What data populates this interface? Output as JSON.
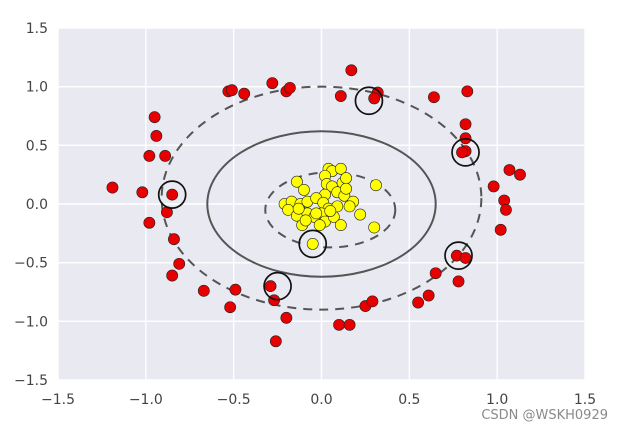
{
  "chart_data": {
    "type": "scatter",
    "title": "",
    "xlabel": "",
    "ylabel": "",
    "xlim": [
      -1.5,
      1.5
    ],
    "ylim": [
      -1.5,
      1.5
    ],
    "grid": true,
    "x_ticks": [
      -1.5,
      -1.0,
      -0.5,
      0.0,
      0.5,
      1.0,
      1.5
    ],
    "y_ticks": [
      -1.5,
      -1.0,
      -0.5,
      0.0,
      0.5,
      1.0,
      1.5
    ],
    "x_tick_labels": [
      "−1.5",
      "−1.0",
      "−0.5",
      "0.0",
      "0.5",
      "1.0",
      "1.5"
    ],
    "y_tick_labels": [
      "−1.5",
      "−1.0",
      "−0.5",
      "0.0",
      "0.5",
      "1.0",
      "1.5"
    ],
    "colors": {
      "background": "#e9e9f2",
      "grid": "#ffffff",
      "outer_class": "#e60000",
      "inner_class": "#ffff00",
      "marker_edge": "#222222",
      "contour": "#555555",
      "support_circle": "#111111"
    },
    "series": [
      {
        "color": "#e60000",
        "points": [
          [
            -0.28,
            1.03
          ],
          [
            -0.2,
            0.96
          ],
          [
            -0.18,
            0.99
          ],
          [
            -0.53,
            0.96
          ],
          [
            -0.51,
            0.97
          ],
          [
            -0.44,
            0.94
          ],
          [
            0.17,
            1.14
          ],
          [
            0.11,
            0.92
          ],
          [
            0.32,
            0.95
          ],
          [
            0.3,
            0.9
          ],
          [
            0.64,
            0.91
          ],
          [
            0.83,
            0.96
          ],
          [
            -0.95,
            0.74
          ],
          [
            -0.94,
            0.58
          ],
          [
            -0.98,
            0.41
          ],
          [
            -0.89,
            0.41
          ],
          [
            -1.19,
            0.14
          ],
          [
            -1.02,
            0.1
          ],
          [
            -0.85,
            0.08
          ],
          [
            -0.98,
            -0.16
          ],
          [
            -0.88,
            -0.07
          ],
          [
            -0.84,
            -0.3
          ],
          [
            -0.81,
            -0.51
          ],
          [
            -0.85,
            -0.61
          ],
          [
            -0.67,
            -0.74
          ],
          [
            -0.49,
            -0.73
          ],
          [
            -0.52,
            -0.88
          ],
          [
            -0.29,
            -0.7
          ],
          [
            -0.27,
            -0.82
          ],
          [
            -0.2,
            -0.97
          ],
          [
            -0.26,
            -1.17
          ],
          [
            0.1,
            -1.03
          ],
          [
            0.16,
            -1.03
          ],
          [
            0.25,
            -0.87
          ],
          [
            0.29,
            -0.83
          ],
          [
            0.55,
            -0.84
          ],
          [
            0.61,
            -0.78
          ],
          [
            0.65,
            -0.59
          ],
          [
            0.78,
            -0.66
          ],
          [
            0.77,
            -0.44
          ],
          [
            0.82,
            -0.46
          ],
          [
            0.82,
            0.68
          ],
          [
            0.82,
            0.56
          ],
          [
            0.82,
            0.45
          ],
          [
            0.98,
            0.15
          ],
          [
            1.04,
            0.03
          ],
          [
            1.05,
            -0.05
          ],
          [
            1.02,
            -0.22
          ],
          [
            1.07,
            0.29
          ],
          [
            1.13,
            0.25
          ],
          [
            0.8,
            0.44
          ]
        ]
      },
      {
        "color": "#ffff00",
        "points": [
          [
            0.04,
            0.3
          ],
          [
            0.06,
            0.28
          ],
          [
            0.02,
            0.24
          ],
          [
            0.11,
            0.3
          ],
          [
            0.12,
            0.18
          ],
          [
            0.14,
            0.22
          ],
          [
            0.31,
            0.16
          ],
          [
            -0.14,
            0.19
          ],
          [
            -0.1,
            0.12
          ],
          [
            0.03,
            0.17
          ],
          [
            0.06,
            0.15
          ],
          [
            0.09,
            0.1
          ],
          [
            0.02,
            0.08
          ],
          [
            0.13,
            0.07
          ],
          [
            0.18,
            0.02
          ],
          [
            -0.21,
            0.0
          ],
          [
            -0.17,
            0.02
          ],
          [
            -0.12,
            0.0
          ],
          [
            -0.08,
            0.02
          ],
          [
            -0.03,
            0.05
          ],
          [
            0.01,
            0.01
          ],
          [
            0.04,
            -0.04
          ],
          [
            0.09,
            -0.02
          ],
          [
            0.16,
            -0.02
          ],
          [
            0.22,
            -0.09
          ],
          [
            -0.19,
            -0.05
          ],
          [
            -0.14,
            -0.1
          ],
          [
            -0.08,
            -0.08
          ],
          [
            -0.04,
            -0.11
          ],
          [
            0.0,
            -0.08
          ],
          [
            0.02,
            -0.15
          ],
          [
            0.07,
            -0.11
          ],
          [
            -0.11,
            -0.18
          ],
          [
            -0.09,
            -0.14
          ],
          [
            -0.01,
            -0.18
          ],
          [
            0.11,
            -0.18
          ],
          [
            0.3,
            -0.2
          ],
          [
            -0.05,
            -0.34
          ],
          [
            -0.03,
            -0.08
          ],
          [
            0.05,
            -0.06
          ],
          [
            0.14,
            0.13
          ],
          [
            -0.13,
            -0.04
          ]
        ]
      }
    ],
    "support_vectors": [
      [
        0.27,
        0.88
      ],
      [
        0.82,
        0.44
      ],
      [
        0.78,
        -0.44
      ],
      [
        -0.25,
        -0.7
      ],
      [
        -0.05,
        -0.34
      ],
      [
        -0.85,
        0.08
      ]
    ],
    "decision_boundary": {
      "center": [
        0.0,
        0.0
      ],
      "radii": [
        0.65,
        0.62
      ],
      "style": "solid"
    },
    "margin_inner": {
      "center": [
        0.05,
        -0.05
      ],
      "radii": [
        0.37,
        0.32
      ],
      "style": "dashed"
    },
    "margin_outer": {
      "center": [
        0.0,
        0.05
      ],
      "radii": [
        0.91,
        0.95
      ],
      "style": "dashed"
    }
  },
  "watermark": "CSDN @WSKH0929"
}
